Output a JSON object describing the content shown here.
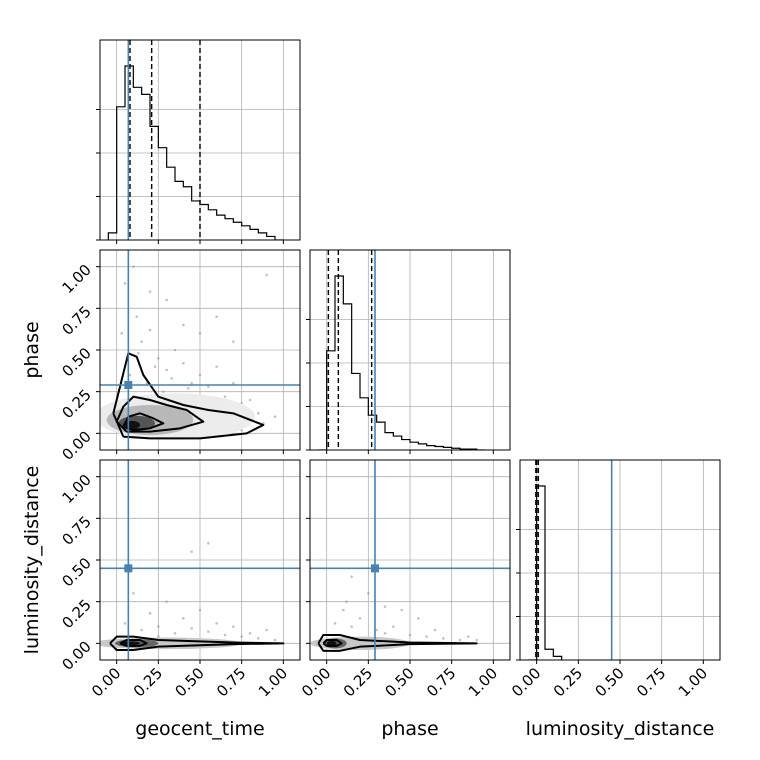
{
  "chart_data": {
    "type": "corner",
    "parameters": [
      "geocent_time",
      "phase",
      "luminosity_distance"
    ],
    "axis_range": [
      -0.1,
      1.1
    ],
    "tick_labels": [
      "0.00",
      "0.25",
      "0.50",
      "0.75",
      "1.00"
    ],
    "tick_values": [
      0,
      0.25,
      0.5,
      0.75,
      1.0
    ],
    "grid": true,
    "truth_color": "#4682b4",
    "truths": {
      "geocent_time": 0.07,
      "phase": 0.29,
      "luminosity_distance": 0.45
    },
    "histograms": {
      "geocent_time": {
        "bin_edges": [
          -0.05,
          0.0,
          0.05,
          0.1,
          0.15,
          0.2,
          0.25,
          0.3,
          0.35,
          0.4,
          0.45,
          0.5,
          0.55,
          0.6,
          0.65,
          0.7,
          0.75,
          0.8,
          0.85,
          0.9,
          0.95,
          1.0
        ],
        "heights": [
          0.04,
          0.75,
          0.98,
          0.86,
          0.82,
          0.64,
          0.52,
          0.41,
          0.33,
          0.3,
          0.22,
          0.2,
          0.17,
          0.14,
          0.12,
          0.1,
          0.08,
          0.06,
          0.04,
          0.02,
          0.0
        ],
        "quantiles": [
          0.08,
          0.21,
          0.5
        ]
      },
      "phase": {
        "bin_edges": [
          -0.05,
          0.0,
          0.05,
          0.1,
          0.15,
          0.2,
          0.25,
          0.3,
          0.35,
          0.4,
          0.45,
          0.5,
          0.55,
          0.6,
          0.65,
          0.7,
          0.75,
          0.8,
          0.85,
          0.9,
          0.95
        ],
        "heights": [
          0.0,
          0.57,
          1.0,
          0.84,
          0.44,
          0.3,
          0.2,
          0.16,
          0.1,
          0.08,
          0.06,
          0.045,
          0.035,
          0.025,
          0.02,
          0.015,
          0.01,
          0.005,
          0.005,
          0.0
        ],
        "quantiles": [
          0.01,
          0.07,
          0.27
        ]
      },
      "luminosity_distance": {
        "bin_edges": [
          -0.05,
          0.0,
          0.05,
          0.1,
          0.15
        ],
        "heights": [
          0.0,
          0.97,
          0.06,
          0.02
        ],
        "quantiles": [
          -0.005,
          0.0,
          0.01
        ]
      }
    },
    "scatter": [
      {
        "x_param": "geocent_time",
        "y_param": "phase",
        "points": [
          [
            0.05,
            0.9
          ],
          [
            0.12,
            0.7
          ],
          [
            0.15,
            0.55
          ],
          [
            0.2,
            0.62
          ],
          [
            0.25,
            0.45
          ],
          [
            0.3,
            0.38
          ],
          [
            0.35,
            0.5
          ],
          [
            0.4,
            0.42
          ],
          [
            0.45,
            0.3
          ],
          [
            0.5,
            0.35
          ],
          [
            0.55,
            0.28
          ],
          [
            0.6,
            0.4
          ],
          [
            0.65,
            0.22
          ],
          [
            0.7,
            0.3
          ],
          [
            0.75,
            0.18
          ],
          [
            0.8,
            0.2
          ],
          [
            0.85,
            0.12
          ],
          [
            0.9,
            0.95
          ],
          [
            0.1,
            1.0
          ],
          [
            0.3,
            0.8
          ],
          [
            0.5,
            0.6
          ],
          [
            0.7,
            0.55
          ],
          [
            0.6,
            0.7
          ],
          [
            0.2,
            0.85
          ],
          [
            0.4,
            0.65
          ],
          [
            0.95,
            0.1
          ],
          [
            0.08,
            0.35
          ],
          [
            0.18,
            0.3
          ],
          [
            0.28,
            0.25
          ],
          [
            0.38,
            0.2
          ],
          [
            0.48,
            0.15
          ],
          [
            0.58,
            0.12
          ],
          [
            0.68,
            0.1
          ],
          [
            0.78,
            0.08
          ],
          [
            0.88,
            0.06
          ],
          [
            0.03,
            0.6
          ],
          [
            0.13,
            0.48
          ],
          [
            0.23,
            0.4
          ],
          [
            0.33,
            0.33
          ],
          [
            0.43,
            0.27
          ],
          [
            0.02,
            0.02
          ],
          [
            0.15,
            0.02
          ],
          [
            0.35,
            0.02
          ],
          [
            0.55,
            0.02
          ],
          [
            0.75,
            0.02
          ]
        ],
        "density_levels": [
          {
            "cx": 0.09,
            "cy": 0.05,
            "rx": 0.05,
            "ry": 0.025,
            "shade": "#111111"
          },
          {
            "cx": 0.12,
            "cy": 0.06,
            "rx": 0.11,
            "ry": 0.045,
            "shade": "#555555"
          },
          {
            "cx": 0.2,
            "cy": 0.08,
            "rx": 0.26,
            "ry": 0.09,
            "shade": "#b8b8b8"
          },
          {
            "cx": 0.35,
            "cy": 0.1,
            "rx": 0.48,
            "ry": 0.14,
            "shade": "#ececec"
          }
        ]
      },
      {
        "x_param": "geocent_time",
        "y_param": "luminosity_distance",
        "points": [
          [
            0.05,
            0.12
          ],
          [
            0.15,
            0.08
          ],
          [
            0.25,
            0.1
          ],
          [
            0.35,
            0.06
          ],
          [
            0.45,
            0.09
          ],
          [
            0.55,
            0.07
          ],
          [
            0.65,
            0.05
          ],
          [
            0.75,
            0.04
          ],
          [
            0.85,
            0.03
          ],
          [
            0.95,
            0.02
          ],
          [
            0.2,
            0.18
          ],
          [
            0.4,
            0.15
          ],
          [
            0.6,
            0.12
          ],
          [
            0.3,
            0.25
          ],
          [
            0.5,
            0.2
          ],
          [
            0.7,
            0.1
          ],
          [
            0.9,
            0.08
          ],
          [
            0.1,
            0.3
          ],
          [
            0.55,
            0.6
          ],
          [
            0.45,
            0.55
          ],
          [
            0.25,
            0.04
          ],
          [
            0.8,
            0.06
          ]
        ],
        "density_levels": [
          {
            "cx": 0.08,
            "cy": 0.0,
            "rx": 0.06,
            "ry": 0.012,
            "shade": "#111111"
          },
          {
            "cx": 0.12,
            "cy": 0.0,
            "rx": 0.13,
            "ry": 0.025,
            "shade": "#666666"
          },
          {
            "cx": 0.3,
            "cy": 0.0,
            "rx": 0.45,
            "ry": 0.035,
            "shade": "#c8c8c8"
          }
        ]
      },
      {
        "x_param": "phase",
        "y_param": "luminosity_distance",
        "points": [
          [
            0.05,
            0.12
          ],
          [
            0.1,
            0.2
          ],
          [
            0.15,
            0.1
          ],
          [
            0.2,
            0.15
          ],
          [
            0.3,
            0.08
          ],
          [
            0.35,
            0.06
          ],
          [
            0.4,
            0.1
          ],
          [
            0.5,
            0.05
          ],
          [
            0.6,
            0.04
          ],
          [
            0.7,
            0.03
          ],
          [
            0.8,
            0.02
          ],
          [
            0.9,
            0.02
          ],
          [
            0.25,
            0.3
          ],
          [
            0.45,
            0.2
          ],
          [
            0.55,
            0.15
          ],
          [
            0.15,
            0.4
          ],
          [
            0.65,
            0.08
          ],
          [
            0.85,
            0.04
          ],
          [
            0.35,
            0.22
          ],
          [
            0.12,
            0.25
          ]
        ],
        "density_levels": [
          {
            "cx": 0.03,
            "cy": 0.0,
            "rx": 0.03,
            "ry": 0.015,
            "shade": "#111111"
          },
          {
            "cx": 0.05,
            "cy": 0.0,
            "rx": 0.07,
            "ry": 0.03,
            "shade": "#666666"
          },
          {
            "cx": 0.2,
            "cy": 0.0,
            "rx": 0.3,
            "ry": 0.04,
            "shade": "#c8c8c8"
          }
        ]
      }
    ],
    "contours": [
      {
        "x_param": "geocent_time",
        "y_param": "phase",
        "lines": [
          [
            [
              0.04,
              0.04
            ],
            [
              0.07,
              0.1
            ],
            [
              0.14,
              0.12
            ],
            [
              0.22,
              0.09
            ],
            [
              0.28,
              0.06
            ],
            [
              0.2,
              0.03
            ],
            [
              0.1,
              0.02
            ],
            [
              0.04,
              0.04
            ]
          ],
          [
            [
              0.0,
              0.07
            ],
            [
              0.04,
              0.16
            ],
            [
              0.1,
              0.22
            ],
            [
              0.2,
              0.2
            ],
            [
              0.3,
              0.17
            ],
            [
              0.42,
              0.14
            ],
            [
              0.52,
              0.07
            ],
            [
              0.38,
              0.03
            ],
            [
              0.2,
              0.01
            ],
            [
              0.06,
              0.01
            ],
            [
              0.0,
              0.07
            ]
          ],
          [
            [
              -0.02,
              0.12
            ],
            [
              0.03,
              0.32
            ],
            [
              0.07,
              0.48
            ],
            [
              0.12,
              0.46
            ],
            [
              0.16,
              0.35
            ],
            [
              0.25,
              0.22
            ],
            [
              0.4,
              0.17
            ],
            [
              0.55,
              0.14
            ],
            [
              0.7,
              0.12
            ],
            [
              0.88,
              0.05
            ],
            [
              0.78,
              0.0
            ],
            [
              0.5,
              -0.03
            ],
            [
              0.2,
              -0.03
            ],
            [
              0.04,
              -0.02
            ],
            [
              -0.02,
              0.12
            ]
          ]
        ]
      },
      {
        "x_param": "geocent_time",
        "y_param": "luminosity_distance",
        "lines": [
          [
            [
              0.02,
              0.0
            ],
            [
              0.06,
              0.02
            ],
            [
              0.14,
              0.02
            ],
            [
              0.18,
              0.0
            ],
            [
              0.14,
              -0.015
            ],
            [
              0.06,
              -0.015
            ],
            [
              0.02,
              0.0
            ]
          ],
          [
            [
              -0.04,
              0.0
            ],
            [
              0.0,
              0.04
            ],
            [
              0.1,
              0.04
            ],
            [
              0.25,
              0.02
            ],
            [
              0.7,
              0.005
            ],
            [
              1.0,
              0.0
            ],
            [
              0.7,
              -0.005
            ],
            [
              0.25,
              -0.02
            ],
            [
              0.1,
              -0.04
            ],
            [
              0.0,
              -0.04
            ],
            [
              -0.04,
              0.0
            ]
          ]
        ]
      },
      {
        "x_param": "phase",
        "y_param": "luminosity_distance",
        "lines": [
          [
            [
              -0.02,
              0.0
            ],
            [
              0.0,
              0.02
            ],
            [
              0.06,
              0.02
            ],
            [
              0.09,
              0.0
            ],
            [
              0.06,
              -0.015
            ],
            [
              0.0,
              -0.015
            ],
            [
              -0.02,
              0.0
            ]
          ],
          [
            [
              -0.05,
              0.0
            ],
            [
              -0.02,
              0.05
            ],
            [
              0.08,
              0.05
            ],
            [
              0.2,
              0.02
            ],
            [
              0.5,
              0.005
            ],
            [
              0.9,
              0.0
            ],
            [
              0.5,
              -0.005
            ],
            [
              0.2,
              -0.02
            ],
            [
              0.08,
              -0.045
            ],
            [
              -0.02,
              -0.045
            ],
            [
              -0.05,
              0.0
            ]
          ]
        ]
      }
    ]
  }
}
